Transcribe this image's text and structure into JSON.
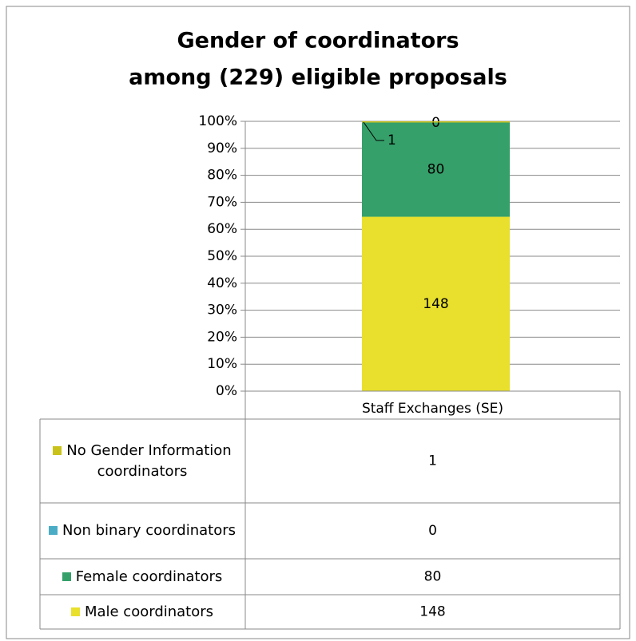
{
  "chart_data": {
    "type": "stacked_percent_bar",
    "title": [
      "Gender of coordinators",
      "among (229) eligible proposals"
    ],
    "categories": [
      "Staff Exchanges (SE)"
    ],
    "series": [
      {
        "name": "Male coordinators",
        "color": "#e8e02c",
        "values": [
          148
        ]
      },
      {
        "name": "Female coordinators",
        "color": "#35a06a",
        "values": [
          80
        ]
      },
      {
        "name": "Non binary coordinators",
        "color": "#4bacc6",
        "values": [
          0
        ]
      },
      {
        "name": "No Gender Information coordinators",
        "color": "#c9c21a",
        "values": [
          1
        ]
      }
    ],
    "ylim": [
      0,
      100
    ],
    "yticks": [
      {
        "value": 0,
        "label": "0%"
      },
      {
        "value": 10,
        "label": "10%"
      },
      {
        "value": 20,
        "label": "20%"
      },
      {
        "value": 30,
        "label": "30%"
      },
      {
        "value": 40,
        "label": "40%"
      },
      {
        "value": 50,
        "label": "50%"
      },
      {
        "value": 60,
        "label": "60%"
      },
      {
        "value": 70,
        "label": "70%"
      },
      {
        "value": 80,
        "label": "80%"
      },
      {
        "value": 90,
        "label": "90%"
      },
      {
        "value": 100,
        "label": "100%"
      }
    ],
    "grid": true
  }
}
